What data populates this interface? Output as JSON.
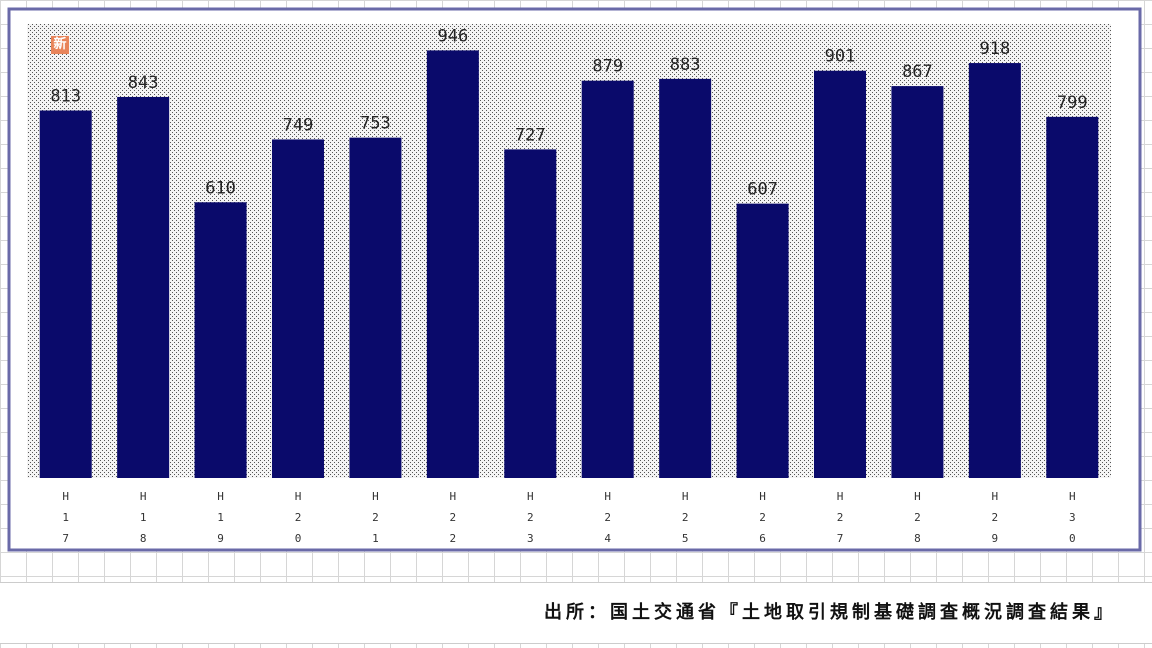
{
  "chart_data": {
    "type": "bar",
    "categories": [
      "H17",
      "H18",
      "H19",
      "H20",
      "H21",
      "H22",
      "H23",
      "H24",
      "H25",
      "H26",
      "H27",
      "H28",
      "H29",
      "H30"
    ],
    "values": [
      813,
      843,
      610,
      749,
      753,
      946,
      727,
      879,
      883,
      607,
      901,
      867,
      918,
      799
    ],
    "color": "#0a0a6b",
    "ylim": [
      0,
      1000
    ],
    "badge": "新",
    "source": "出所：国土交通省『土地取引規制基礎調査概況調査結果』"
  }
}
